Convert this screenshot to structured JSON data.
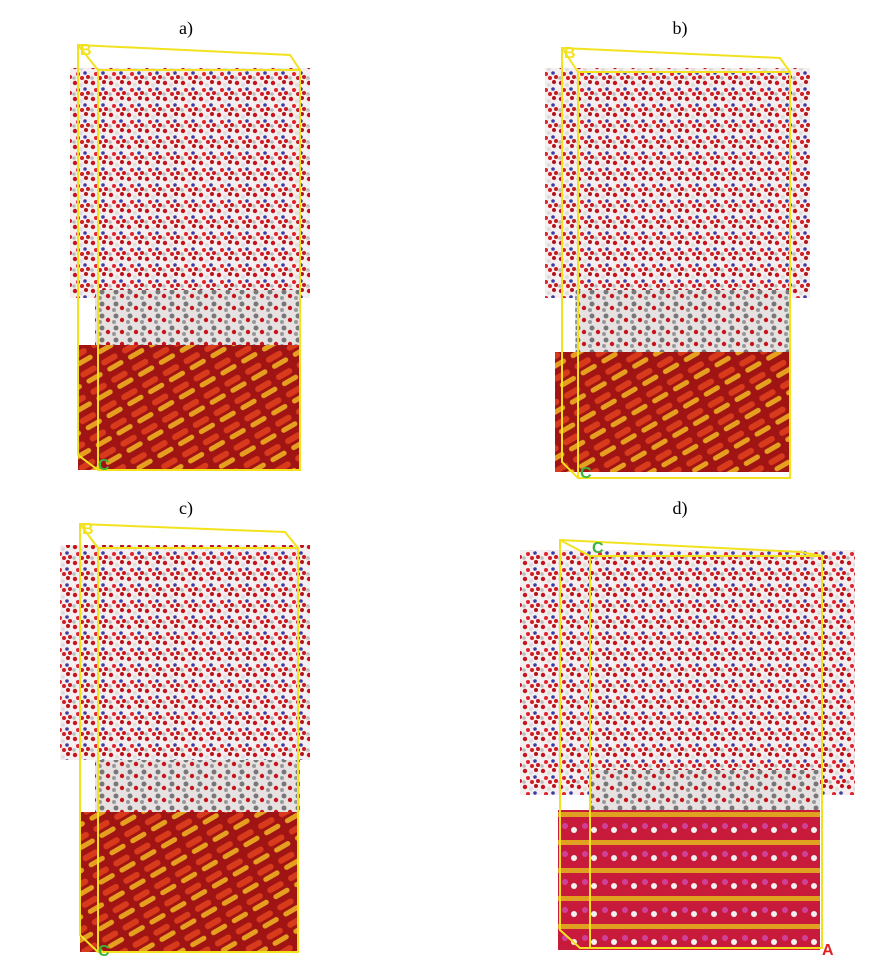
{
  "panels": [
    {
      "label": "a)",
      "axes": [
        "B",
        "C"
      ]
    },
    {
      "label": "b)",
      "axes": [
        "B",
        "C"
      ]
    },
    {
      "label": "c)",
      "axes": [
        "B",
        "C"
      ]
    },
    {
      "label": "d)",
      "axes": [
        "C",
        "A"
      ]
    }
  ]
}
